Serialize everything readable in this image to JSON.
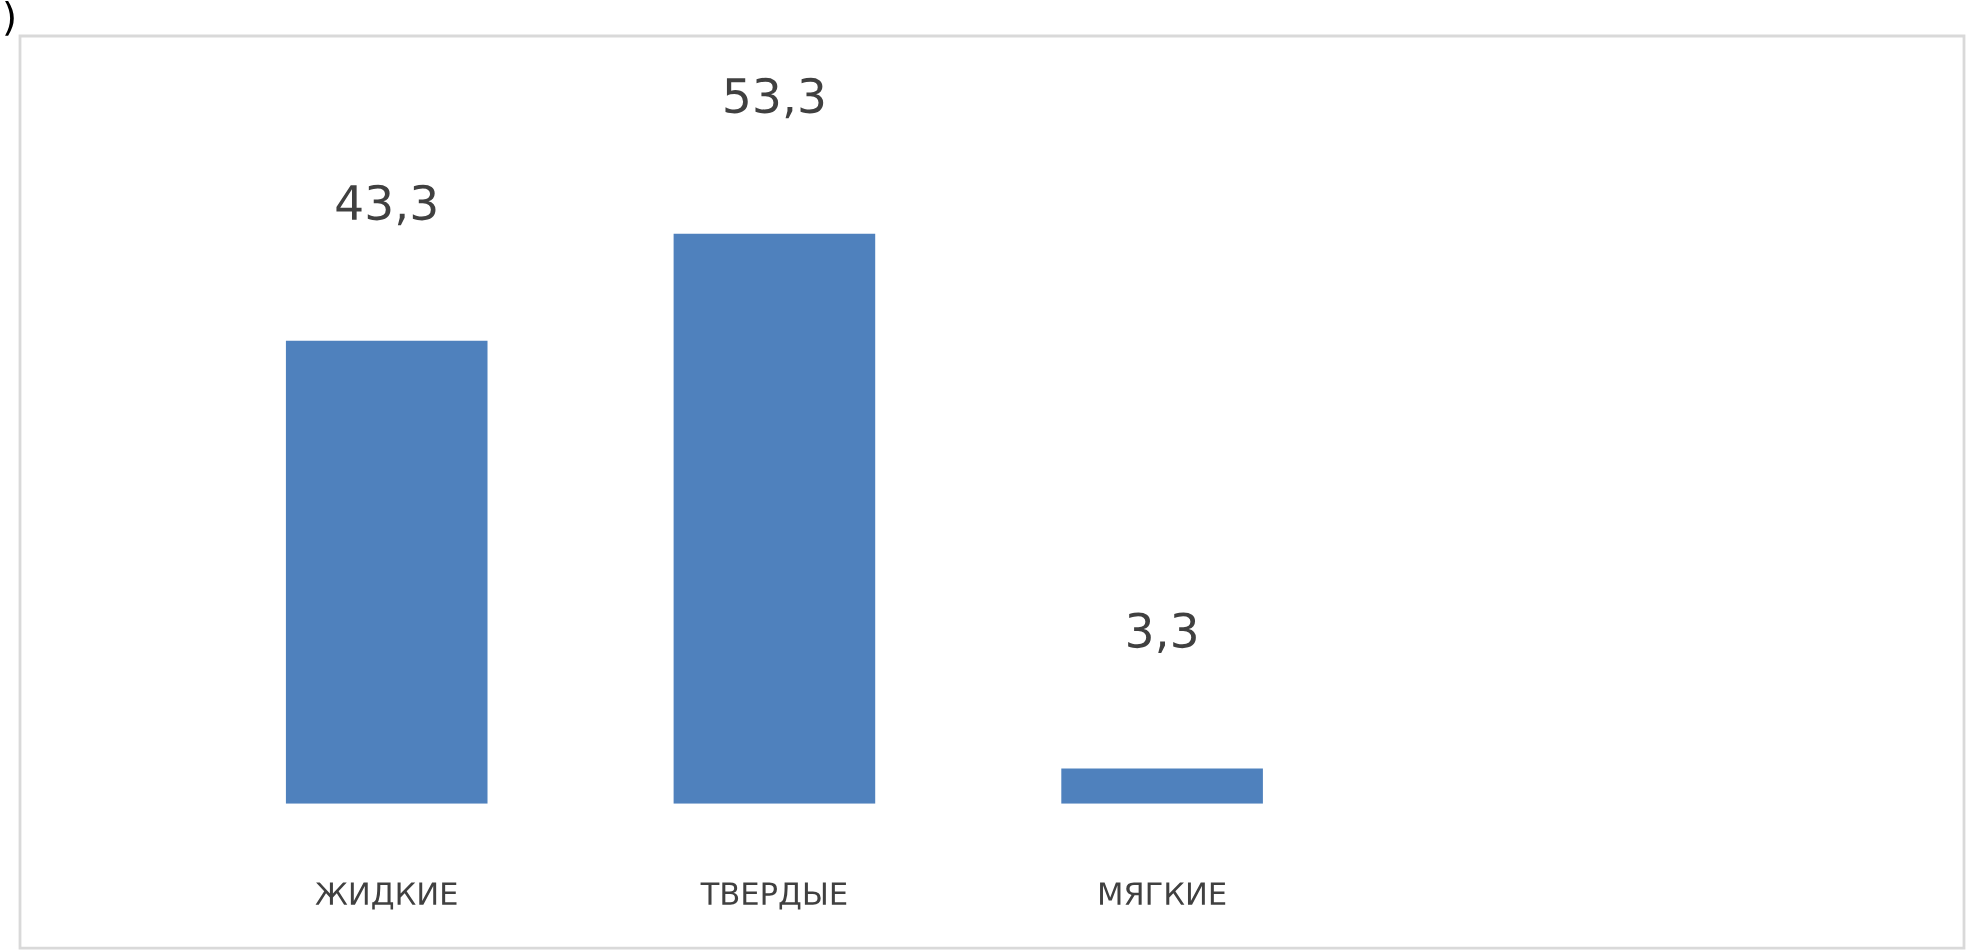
{
  "chart_data": {
    "type": "bar",
    "categories": [
      "ЖИДКИЕ",
      "ТВЕРДЫЕ",
      "МЯГКИЕ"
    ],
    "values": [
      43.3,
      53.3,
      3.3
    ],
    "value_labels": [
      "43,3",
      "53,3",
      "3,3"
    ],
    "color": "#4f81bd",
    "annotations": [
      ")"
    ],
    "grid": false,
    "legend": false,
    "tick_labels": "x"
  }
}
